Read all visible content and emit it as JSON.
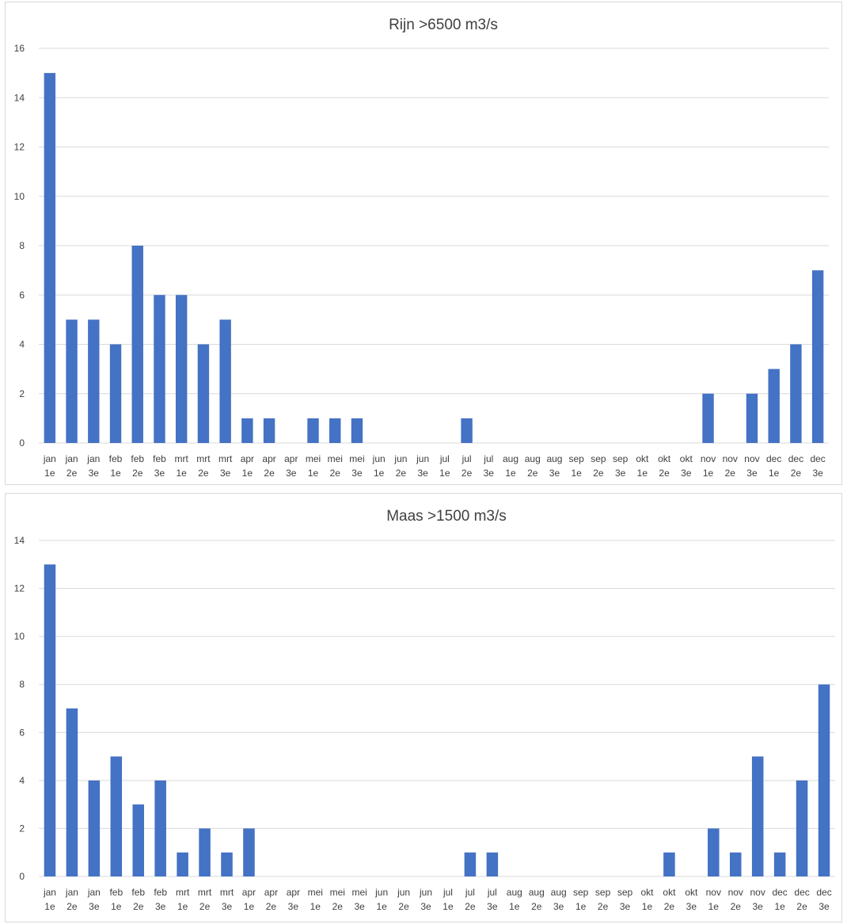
{
  "chart_data": [
    {
      "type": "bar",
      "title": "Rijn >6500 m3/s",
      "xlabel": "",
      "ylabel": "",
      "ylim": [
        0,
        16
      ],
      "yticks": [
        0,
        2,
        4,
        6,
        8,
        10,
        12,
        14,
        16
      ],
      "grid": true,
      "legend": "none",
      "bar_color": "#4472c4",
      "categories": [
        [
          "jan",
          "1e"
        ],
        [
          "jan",
          "2e"
        ],
        [
          "jan",
          "3e"
        ],
        [
          "feb",
          "1e"
        ],
        [
          "feb",
          "2e"
        ],
        [
          "feb",
          "3e"
        ],
        [
          "mrt",
          "1e"
        ],
        [
          "mrt",
          "2e"
        ],
        [
          "mrt",
          "3e"
        ],
        [
          "apr",
          "1e"
        ],
        [
          "apr",
          "2e"
        ],
        [
          "apr",
          "3e"
        ],
        [
          "mei",
          "1e"
        ],
        [
          "mei",
          "2e"
        ],
        [
          "mei",
          "3e"
        ],
        [
          "jun",
          "1e"
        ],
        [
          "jun",
          "2e"
        ],
        [
          "jun",
          "3e"
        ],
        [
          "jul",
          "1e"
        ],
        [
          "jul",
          "2e"
        ],
        [
          "jul",
          "3e"
        ],
        [
          "aug",
          "1e"
        ],
        [
          "aug",
          "2e"
        ],
        [
          "aug",
          "3e"
        ],
        [
          "sep",
          "1e"
        ],
        [
          "sep",
          "2e"
        ],
        [
          "sep",
          "3e"
        ],
        [
          "okt",
          "1e"
        ],
        [
          "okt",
          "2e"
        ],
        [
          "okt",
          "3e"
        ],
        [
          "nov",
          "1e"
        ],
        [
          "nov",
          "2e"
        ],
        [
          "nov",
          "3e"
        ],
        [
          "dec",
          "1e"
        ],
        [
          "dec",
          "2e"
        ],
        [
          "dec",
          "3e"
        ]
      ],
      "values": [
        15,
        5,
        5,
        4,
        8,
        6,
        6,
        4,
        5,
        1,
        1,
        0,
        1,
        1,
        1,
        0,
        0,
        0,
        0,
        1,
        0,
        0,
        0,
        0,
        0,
        0,
        0,
        0,
        0,
        0,
        2,
        0,
        2,
        3,
        4,
        7
      ]
    },
    {
      "type": "bar",
      "title": "Maas >1500 m3/s",
      "xlabel": "",
      "ylabel": "",
      "ylim": [
        0,
        14
      ],
      "yticks": [
        0,
        2,
        4,
        6,
        8,
        10,
        12,
        14
      ],
      "grid": true,
      "legend": "none",
      "bar_color": "#4472c4",
      "categories": [
        [
          "jan",
          "1e"
        ],
        [
          "jan",
          "2e"
        ],
        [
          "jan",
          "3e"
        ],
        [
          "feb",
          "1e"
        ],
        [
          "feb",
          "2e"
        ],
        [
          "feb",
          "3e"
        ],
        [
          "mrt",
          "1e"
        ],
        [
          "mrt",
          "2e"
        ],
        [
          "mrt",
          "3e"
        ],
        [
          "apr",
          "1e"
        ],
        [
          "apr",
          "2e"
        ],
        [
          "apr",
          "3e"
        ],
        [
          "mei",
          "1e"
        ],
        [
          "mei",
          "2e"
        ],
        [
          "mei",
          "3e"
        ],
        [
          "jun",
          "1e"
        ],
        [
          "jun",
          "2e"
        ],
        [
          "jun",
          "3e"
        ],
        [
          "jul",
          "1e"
        ],
        [
          "jul",
          "2e"
        ],
        [
          "jul",
          "3e"
        ],
        [
          "aug",
          "1e"
        ],
        [
          "aug",
          "2e"
        ],
        [
          "aug",
          "3e"
        ],
        [
          "sep",
          "1e"
        ],
        [
          "sep",
          "2e"
        ],
        [
          "sep",
          "3e"
        ],
        [
          "okt",
          "1e"
        ],
        [
          "okt",
          "2e"
        ],
        [
          "okt",
          "3e"
        ],
        [
          "nov",
          "1e"
        ],
        [
          "nov",
          "2e"
        ],
        [
          "nov",
          "3e"
        ],
        [
          "dec",
          "1e"
        ],
        [
          "dec",
          "2e"
        ],
        [
          "dec",
          "3e"
        ]
      ],
      "values": [
        13,
        7,
        4,
        5,
        3,
        4,
        1,
        2,
        1,
        2,
        0,
        0,
        0,
        0,
        0,
        0,
        0,
        0,
        0,
        1,
        1,
        0,
        0,
        0,
        0,
        0,
        0,
        0,
        1,
        0,
        2,
        1,
        5,
        1,
        4,
        8
      ]
    }
  ]
}
